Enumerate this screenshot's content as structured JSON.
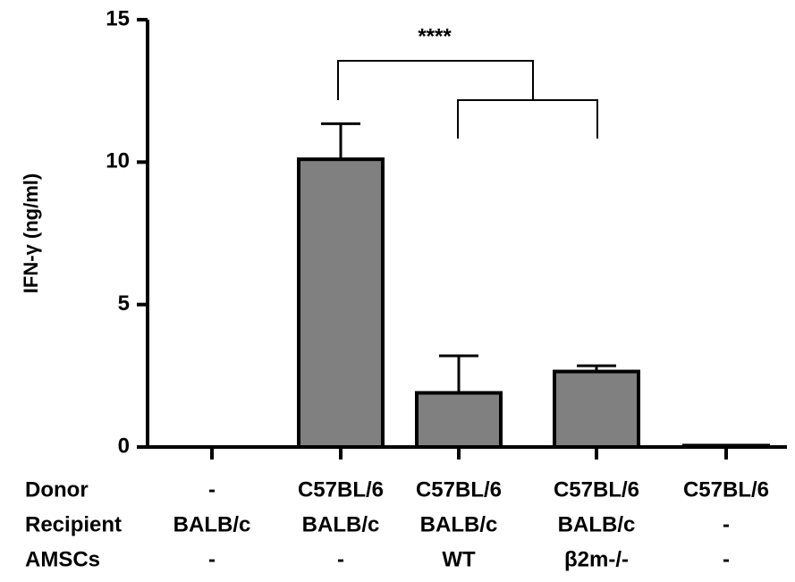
{
  "chart_data": {
    "type": "bar",
    "ylabel": "IFN-γ (ng/ml)",
    "annotation": "****",
    "x_label_rows": [
      {
        "name": "Donor",
        "labels": [
          "-",
          "C57BL/6",
          "C57BL/6",
          "C57BL/6",
          "C57BL/6"
        ]
      },
      {
        "name": "Recipient",
        "labels": [
          "BALB/c",
          "BALB/c",
          "BALB/c",
          "BALB/c",
          "-"
        ]
      },
      {
        "name": "AMSCs",
        "labels": [
          "-",
          "-",
          "WT",
          "β2m-/-",
          "-"
        ]
      }
    ],
    "values": [
      0,
      10.1,
      1.9,
      2.65,
      0.05
    ],
    "errors": [
      null,
      1.25,
      1.3,
      0.2,
      null
    ],
    "color": "#808080",
    "ylim": [
      0,
      15
    ],
    "yticks": [
      0,
      5,
      10,
      15
    ]
  }
}
